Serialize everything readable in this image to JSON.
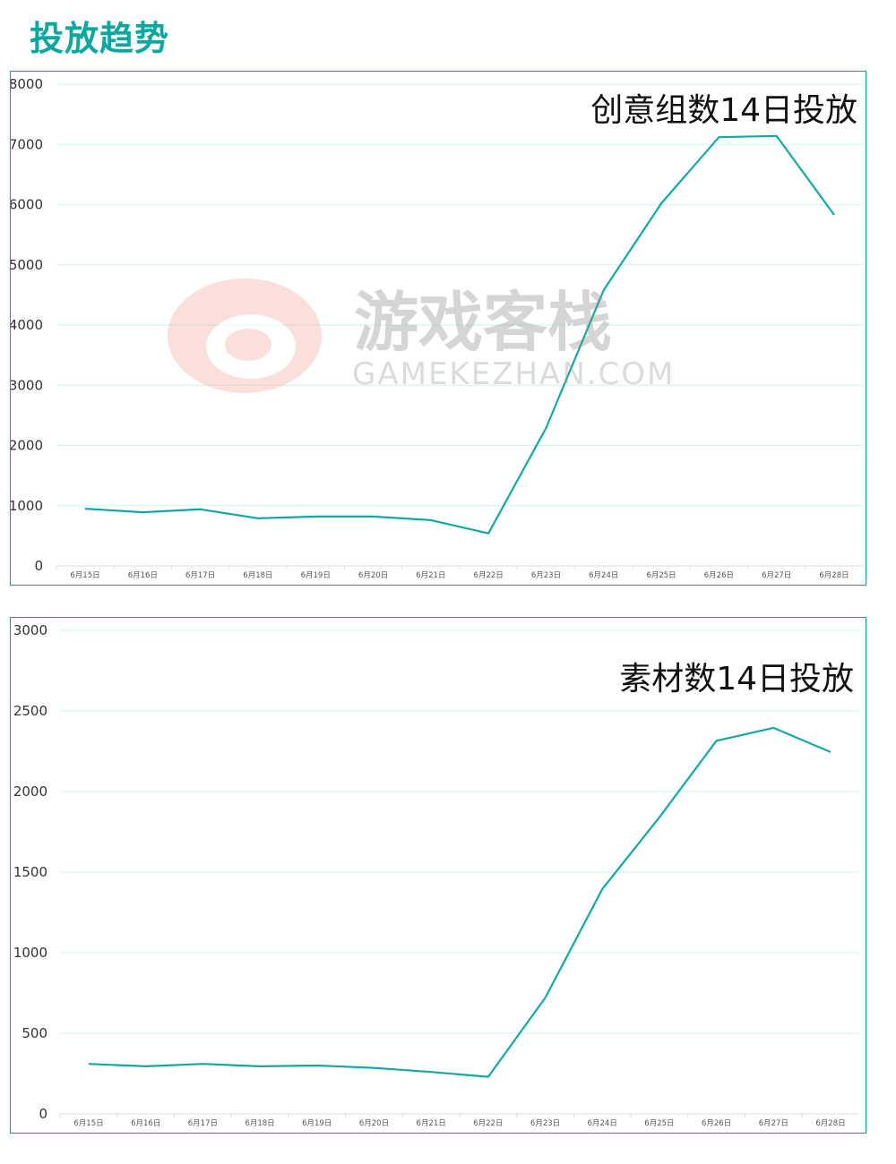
{
  "page_title": "投放趋势",
  "watermark": {
    "text_cn": "游戏客栈",
    "text_en": "GAMEKEZHAN.COM"
  },
  "colors": {
    "title": "#0aa6a0",
    "line": "#13a8a4",
    "grid": "#c8f6f4",
    "border": "#139a94",
    "watermark": "#e85b4a"
  },
  "chart_data": [
    {
      "type": "line",
      "title": "创意组数14日投放",
      "categories": [
        "6月15日",
        "6月16日",
        "6月17日",
        "6月18日",
        "6月19日",
        "6月20日",
        "6月21日",
        "6月22日",
        "6月23日",
        "6月24日",
        "6月25日",
        "6月26日",
        "6月27日",
        "6月28日"
      ],
      "values": [
        950,
        890,
        940,
        790,
        820,
        820,
        760,
        540,
        2290,
        4580,
        6020,
        7120,
        7140,
        5830
      ],
      "yticks": [
        "0",
        "1000",
        "2000",
        "3000",
        "4000",
        "5000",
        "6000",
        "7000",
        "8000"
      ],
      "ylim": [
        0,
        8000
      ],
      "grid": true
    },
    {
      "type": "line",
      "title": "素材数14日投放",
      "categories": [
        "6月15日",
        "6月16日",
        "6月17日",
        "6月18日",
        "6月19日",
        "6月20日",
        "6月21日",
        "6月22日",
        "6月23日",
        "6月24日",
        "6月25日",
        "6月26日",
        "6月27日",
        "6月28日"
      ],
      "values": [
        310,
        295,
        310,
        295,
        300,
        285,
        260,
        230,
        720,
        1395,
        1840,
        2315,
        2395,
        2245
      ],
      "yticks": [
        "0",
        "500",
        "1000",
        "1500",
        "2000",
        "2500",
        "3000"
      ],
      "ylim": [
        0,
        3000
      ],
      "grid": true
    }
  ]
}
